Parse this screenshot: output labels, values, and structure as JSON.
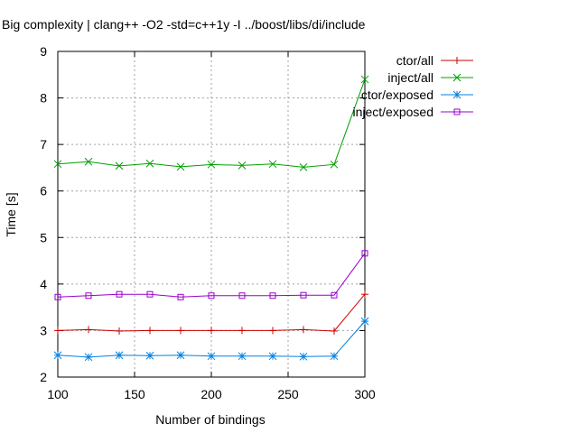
{
  "chart_data": {
    "type": "line",
    "title": "Big complexity | clang++ -O2 -std=c++1y -I ../boost/libs/di/include",
    "xlabel": "Number of bindings",
    "ylabel": "Time [s]",
    "xlim": [
      100,
      300
    ],
    "ylim": [
      2,
      9
    ],
    "xticks": [
      100,
      150,
      200,
      250,
      300
    ],
    "yticks": [
      2,
      3,
      4,
      5,
      6,
      7,
      8,
      9
    ],
    "grid": true,
    "legend_position": "top-right-outside",
    "x": [
      100,
      120,
      140,
      160,
      180,
      200,
      220,
      240,
      260,
      280,
      300
    ],
    "series": [
      {
        "name": "ctor/all",
        "color": "#cc0000",
        "marker": "plus",
        "values": [
          3.0,
          3.02,
          2.99,
          3.0,
          3.0,
          3.0,
          3.0,
          3.0,
          3.02,
          2.99,
          3.78
        ]
      },
      {
        "name": "inject/all",
        "color": "#00a000",
        "marker": "cross",
        "values": [
          6.58,
          6.63,
          6.54,
          6.59,
          6.52,
          6.57,
          6.55,
          6.58,
          6.51,
          6.57,
          8.4
        ]
      },
      {
        "name": "ctor/exposed",
        "color": "#0080e0",
        "marker": "star",
        "values": [
          2.47,
          2.43,
          2.47,
          2.46,
          2.47,
          2.45,
          2.45,
          2.45,
          2.44,
          2.45,
          3.2
        ]
      },
      {
        "name": "inject/exposed",
        "color": "#9900cc",
        "marker": "square",
        "values": [
          3.72,
          3.75,
          3.78,
          3.78,
          3.72,
          3.75,
          3.75,
          3.75,
          3.76,
          3.76,
          4.66
        ]
      }
    ]
  }
}
